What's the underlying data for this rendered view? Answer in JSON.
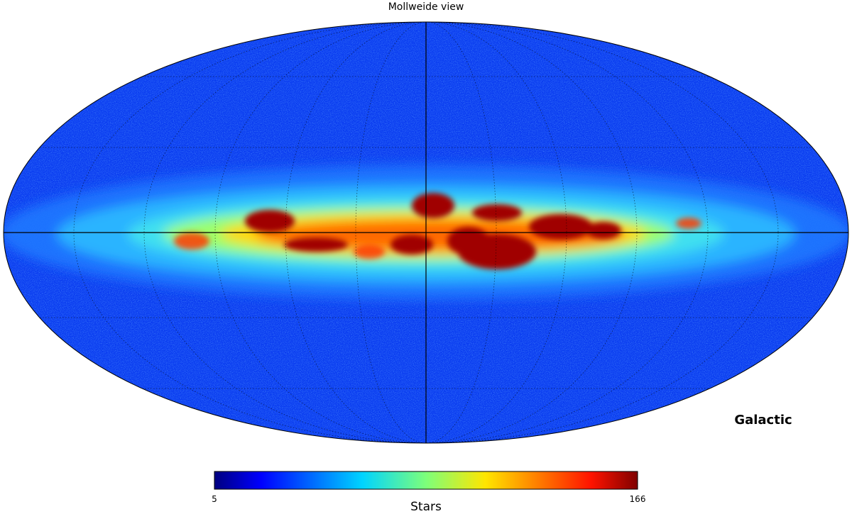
{
  "title": "Mollweide view",
  "coord_label": "Galactic",
  "colorbar": {
    "label": "Stars",
    "min": 5,
    "max": 166
  }
}
